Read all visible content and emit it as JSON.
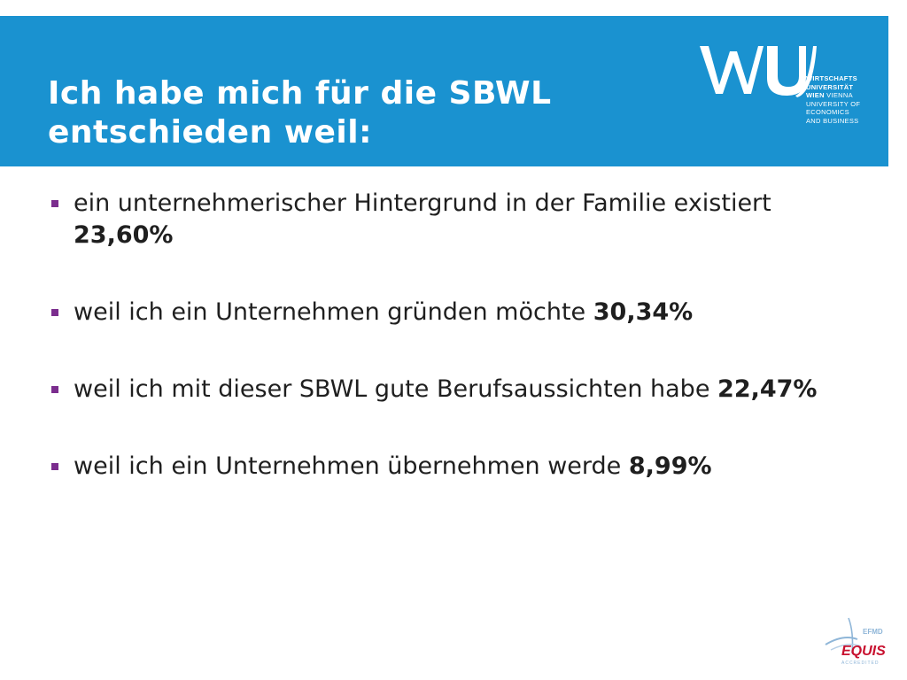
{
  "title": {
    "line1": "Ich habe mich für die SBWL",
    "line2": "entschieden weil:"
  },
  "logo": {
    "mark": "WU",
    "tagline": [
      {
        "text": "WIRTSCHAFTS",
        "bold": true
      },
      {
        "text": "UNIVERSITÄT",
        "bold": true
      },
      {
        "text": "WIEN",
        "bold": true,
        "suffix": " VIENNA"
      },
      {
        "text": "UNIVERSITY OF",
        "bold": false
      },
      {
        "text": "ECONOMICS",
        "bold": false
      },
      {
        "text": "AND BUSINESS",
        "bold": false
      }
    ],
    "color": "#ffffff"
  },
  "bullets": [
    {
      "text": "ein unternehmerischer Hintergrund in der Familie existiert",
      "percent": "23,60%"
    },
    {
      "text": "weil ich ein Unternehmen gründen möchte",
      "percent": "30,34%"
    },
    {
      "text": "weil ich mit dieser SBWL gute Berufsaussichten habe",
      "percent": "22,47%"
    },
    {
      "text": "weil ich ein Unternehmen übernehmen werde",
      "percent": "8,99%"
    }
  ],
  "accreditation": {
    "top": "EFMD",
    "main": "EQUIS",
    "bottom": "ACCREDITED"
  },
  "colors": {
    "header_bg": "#1a92d0",
    "bullet_marker": "#7b2d8e",
    "equis_red": "#c8102e",
    "equis_blue": "#8fb6d8"
  }
}
